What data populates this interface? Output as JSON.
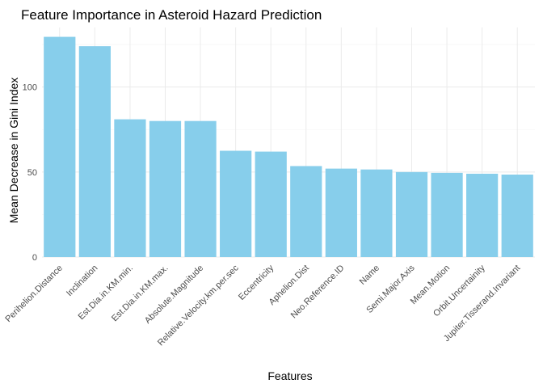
{
  "chart_data": {
    "type": "bar",
    "title": "Feature Importance in Asteroid Hazard Prediction",
    "xlabel": "Features",
    "ylabel": "Mean Decrease in Gini Index",
    "categories": [
      "Perihelion.Distance",
      "Inclination",
      "Est.Dia.in.KM.min.",
      "Est.Dia.in.KM.max.",
      "Absolute.Magnitude",
      "Relative.Velocity.km.per.sec",
      "Eccentricity",
      "Aphelion.Dist",
      "Neo.Reference.ID",
      "Name",
      "Semi.Major.Axis",
      "Mean.Motion",
      "Orbit.Uncertainity",
      "Jupiter.Tisserand.Invariant"
    ],
    "values": [
      129.5,
      124.0,
      81.0,
      80.0,
      80.0,
      62.5,
      62.0,
      53.5,
      52.0,
      51.5,
      50.0,
      49.5,
      49.0,
      48.5
    ],
    "ylim": [
      0,
      135
    ],
    "yticks": [
      0,
      50,
      100
    ],
    "grid": true,
    "legend": "none",
    "bar_color": "#87ceeb"
  }
}
